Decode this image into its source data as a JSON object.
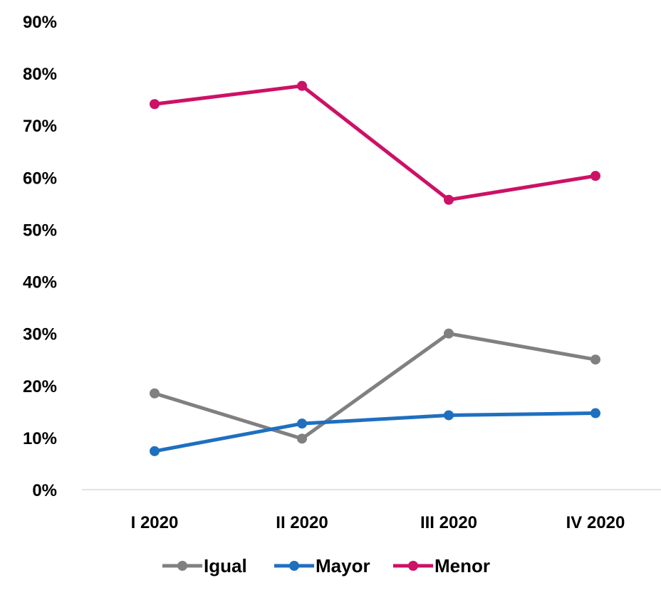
{
  "chart_data": {
    "type": "line",
    "title": "",
    "xlabel": "",
    "ylabel": "",
    "categories": [
      "I 2020",
      "II 2020",
      "III 2020",
      "IV 2020"
    ],
    "ylim": [
      0,
      90
    ],
    "y_ticks": [
      0,
      10,
      20,
      30,
      40,
      50,
      60,
      70,
      80,
      90
    ],
    "y_tick_labels": [
      "0%",
      "10%",
      "20%",
      "30%",
      "40%",
      "50%",
      "60%",
      "70%",
      "80%",
      "90%"
    ],
    "grid": false,
    "legend_position": "bottom",
    "series": [
      {
        "name": "Igual",
        "color": "#808080",
        "values": [
          18.5,
          9.8,
          30.0,
          25.0
        ]
      },
      {
        "name": "Mayor",
        "color": "#1F6FBF",
        "values": [
          7.4,
          12.7,
          14.3,
          14.7
        ]
      },
      {
        "name": "Menor",
        "color": "#CC1166",
        "values": [
          74.1,
          77.6,
          55.7,
          60.3
        ]
      }
    ]
  }
}
